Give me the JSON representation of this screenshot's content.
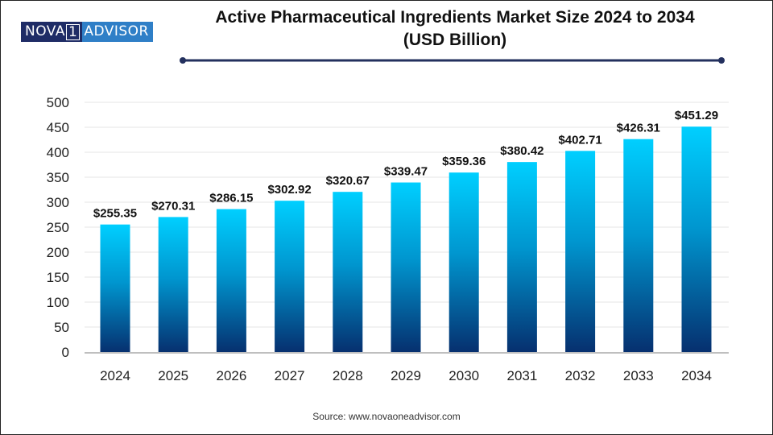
{
  "logo": {
    "left_text": "NOVA",
    "box_text": "1",
    "right_text": "ADVISOR"
  },
  "title_line1": "Active Pharmaceutical Ingredients Market Size 2024 to 2034",
  "title_line2": "(USD Billion)",
  "source": "Source: www.novaoneadvisor.com",
  "colors": {
    "bar_top": "#00cfff",
    "bar_bottom": "#062f6e",
    "separator": "#23305e",
    "grid": "#e6e6e6",
    "axis": "#bfbfbf"
  },
  "chart_data": {
    "type": "bar",
    "title": "Active Pharmaceutical Ingredients Market Size 2024 to 2034 (USD Billion)",
    "xlabel": "",
    "ylabel": "",
    "categories": [
      "2024",
      "2025",
      "2026",
      "2027",
      "2028",
      "2029",
      "2030",
      "2031",
      "2032",
      "2033",
      "2034"
    ],
    "values": [
      255.35,
      270.31,
      286.15,
      302.92,
      320.67,
      339.47,
      359.36,
      380.42,
      402.71,
      426.31,
      451.29
    ],
    "data_labels": [
      "$255.35",
      "$270.31",
      "$286.15",
      "$302.92",
      "$320.67",
      "$339.47",
      "$359.36",
      "$380.42",
      "$402.71",
      "$426.31",
      "$451.29"
    ],
    "yticks": [
      0,
      50,
      100,
      150,
      200,
      250,
      300,
      350,
      400,
      450,
      500
    ],
    "ylim": [
      0,
      500
    ],
    "grid": true,
    "legend": "none"
  }
}
